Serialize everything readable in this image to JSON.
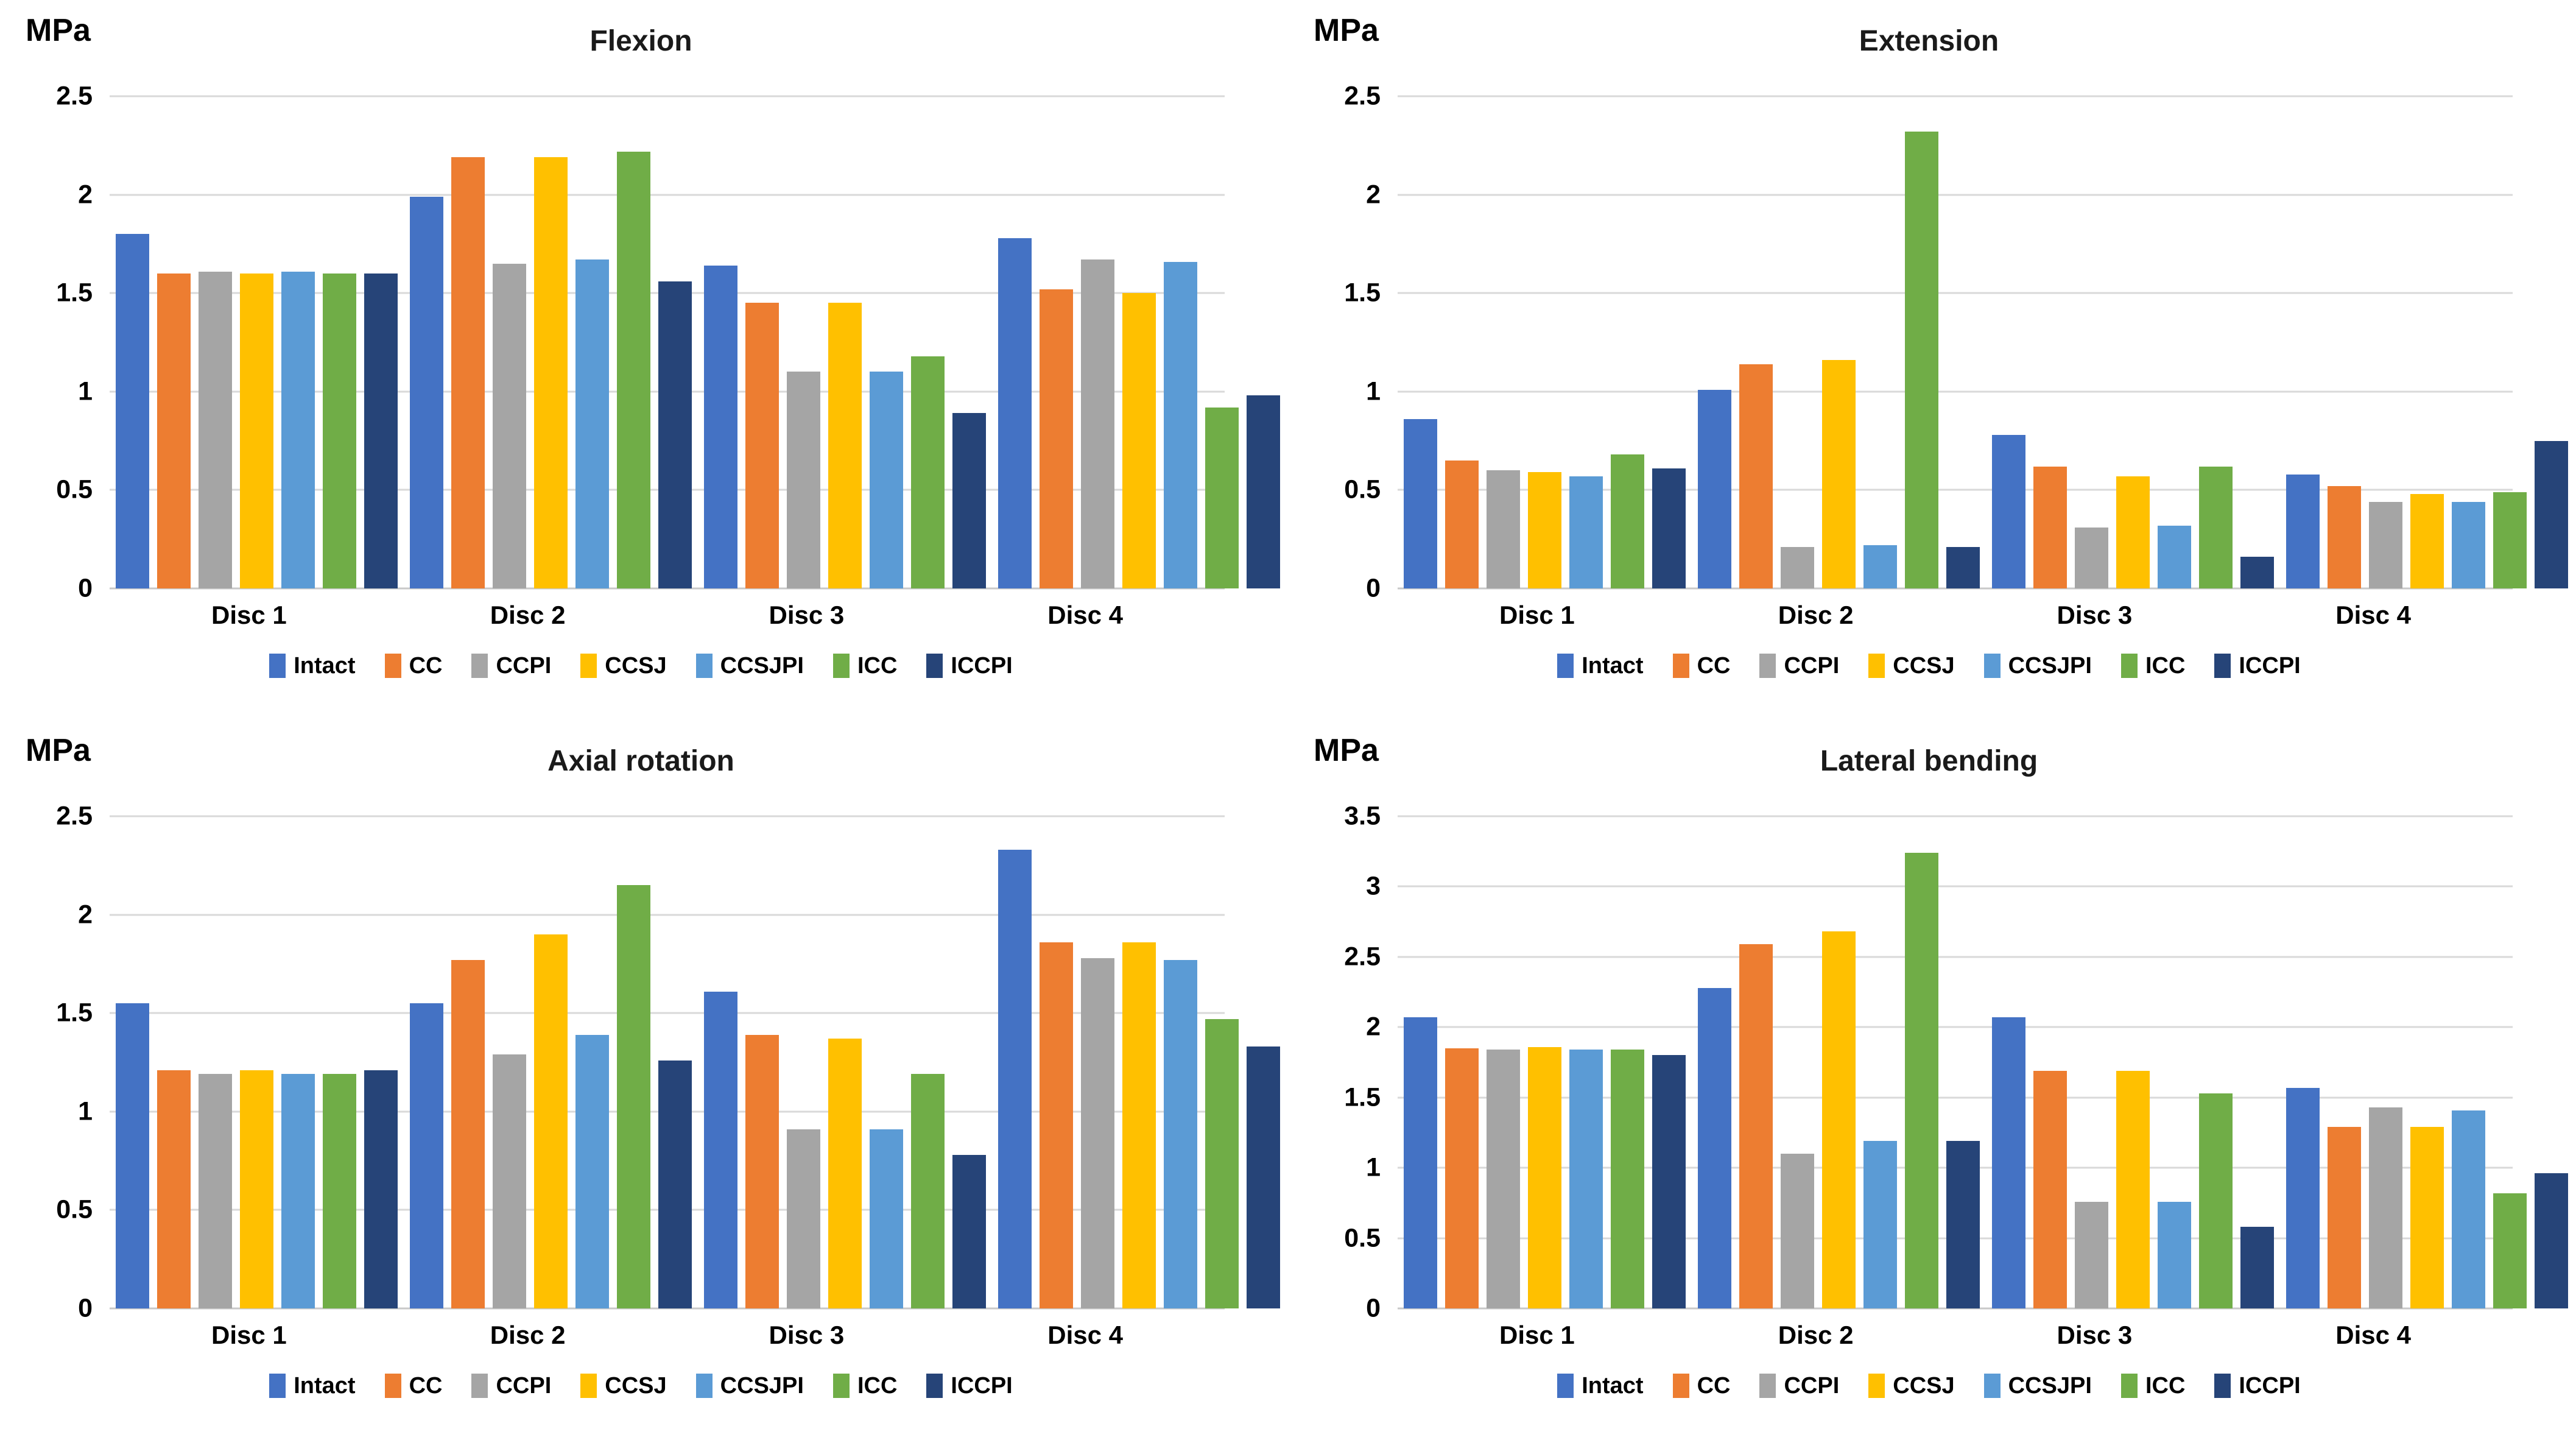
{
  "chart_data": [
    {
      "type": "bar",
      "title": "Flexion",
      "unit": "MPa",
      "categories": [
        "Disc 1",
        "Disc 2",
        "Disc 3",
        "Disc 4"
      ],
      "series": [
        {
          "name": "Intact",
          "color": "#4472C4",
          "values": [
            1.8,
            1.99,
            1.64,
            1.78
          ]
        },
        {
          "name": "CC",
          "color": "#ED7D31",
          "values": [
            1.6,
            2.19,
            1.45,
            1.52
          ]
        },
        {
          "name": "CCPI",
          "color": "#A5A5A5",
          "values": [
            1.61,
            1.65,
            1.1,
            1.67
          ]
        },
        {
          "name": "CCSJ",
          "color": "#FFC000",
          "values": [
            1.6,
            2.19,
            1.45,
            1.5
          ]
        },
        {
          "name": "CCSJPI",
          "color": "#5B9BD5",
          "values": [
            1.61,
            1.67,
            1.1,
            1.66
          ]
        },
        {
          "name": "ICC",
          "color": "#70AD47",
          "values": [
            1.6,
            2.22,
            1.18,
            0.92
          ]
        },
        {
          "name": "ICCPI",
          "color": "#264478",
          "values": [
            1.6,
            1.56,
            0.89,
            0.98
          ]
        }
      ],
      "ylim": [
        0,
        2.5
      ],
      "ytick_step": 0.5,
      "ytick_labels": [
        "0",
        "0.5",
        "1",
        "1.5",
        "2",
        "2.5"
      ],
      "grid": true,
      "legend_position": "bottom"
    },
    {
      "type": "bar",
      "title": "Extension",
      "unit": "MPa",
      "categories": [
        "Disc 1",
        "Disc 2",
        "Disc 3",
        "Disc 4"
      ],
      "series": [
        {
          "name": "Intact",
          "color": "#4472C4",
          "values": [
            0.86,
            1.01,
            0.78,
            0.58
          ]
        },
        {
          "name": "CC",
          "color": "#ED7D31",
          "values": [
            0.65,
            1.14,
            0.62,
            0.52
          ]
        },
        {
          "name": "CCPI",
          "color": "#A5A5A5",
          "values": [
            0.6,
            0.21,
            0.31,
            0.44
          ]
        },
        {
          "name": "CCSJ",
          "color": "#FFC000",
          "values": [
            0.59,
            1.16,
            0.57,
            0.48
          ]
        },
        {
          "name": "CCSJPI",
          "color": "#5B9BD5",
          "values": [
            0.57,
            0.22,
            0.32,
            0.44
          ]
        },
        {
          "name": "ICC",
          "color": "#70AD47",
          "values": [
            0.68,
            2.32,
            0.62,
            0.49
          ]
        },
        {
          "name": "ICCPI",
          "color": "#264478",
          "values": [
            0.61,
            0.21,
            0.16,
            0.75
          ]
        }
      ],
      "ylim": [
        0,
        2.5
      ],
      "ytick_step": 0.5,
      "ytick_labels": [
        "0",
        "0.5",
        "1",
        "1.5",
        "2",
        "2.5"
      ],
      "grid": true,
      "legend_position": "bottom"
    },
    {
      "type": "bar",
      "title": "Axial rotation",
      "unit": "MPa",
      "categories": [
        "Disc 1",
        "Disc 2",
        "Disc 3",
        "Disc 4"
      ],
      "series": [
        {
          "name": "Intact",
          "color": "#4472C4",
          "values": [
            1.55,
            1.55,
            1.61,
            2.33
          ]
        },
        {
          "name": "CC",
          "color": "#ED7D31",
          "values": [
            1.21,
            1.77,
            1.39,
            1.86
          ]
        },
        {
          "name": "CCPI",
          "color": "#A5A5A5",
          "values": [
            1.19,
            1.29,
            0.91,
            1.78
          ]
        },
        {
          "name": "CCSJ",
          "color": "#FFC000",
          "values": [
            1.21,
            1.9,
            1.37,
            1.86
          ]
        },
        {
          "name": "CCSJPI",
          "color": "#5B9BD5",
          "values": [
            1.19,
            1.39,
            0.91,
            1.77
          ]
        },
        {
          "name": "ICC",
          "color": "#70AD47",
          "values": [
            1.19,
            2.15,
            1.19,
            1.47
          ]
        },
        {
          "name": "ICCPI",
          "color": "#264478",
          "values": [
            1.21,
            1.26,
            0.78,
            1.33
          ]
        }
      ],
      "ylim": [
        0,
        2.5
      ],
      "ytick_step": 0.5,
      "ytick_labels": [
        "0",
        "0.5",
        "1",
        "1.5",
        "2",
        "2.5"
      ],
      "grid": true,
      "legend_position": "bottom"
    },
    {
      "type": "bar",
      "title": "Lateral bending",
      "unit": "MPa",
      "categories": [
        "Disc 1",
        "Disc 2",
        "Disc 3",
        "Disc 4"
      ],
      "series": [
        {
          "name": "Intact",
          "color": "#4472C4",
          "values": [
            2.07,
            2.28,
            2.07,
            1.57
          ]
        },
        {
          "name": "CC",
          "color": "#ED7D31",
          "values": [
            1.85,
            2.59,
            1.69,
            1.29
          ]
        },
        {
          "name": "CCPI",
          "color": "#A5A5A5",
          "values": [
            1.84,
            1.1,
            0.76,
            1.43
          ]
        },
        {
          "name": "CCSJ",
          "color": "#FFC000",
          "values": [
            1.86,
            2.68,
            1.69,
            1.29
          ]
        },
        {
          "name": "CCSJPI",
          "color": "#5B9BD5",
          "values": [
            1.84,
            1.19,
            0.76,
            1.41
          ]
        },
        {
          "name": "ICC",
          "color": "#70AD47",
          "values": [
            1.84,
            3.24,
            1.53,
            0.82
          ]
        },
        {
          "name": "ICCPI",
          "color": "#264478",
          "values": [
            1.8,
            1.19,
            0.58,
            0.96
          ]
        }
      ],
      "ylim": [
        0,
        3.5
      ],
      "ytick_step": 0.5,
      "ytick_labels": [
        "0",
        "0.5",
        "1",
        "1.5",
        "2",
        "2.5",
        "3",
        "3.5"
      ],
      "grid": true,
      "legend_position": "bottom"
    }
  ],
  "style_tokens": {
    "gridline_color": "#D9D9D9",
    "text_color": "#000000"
  }
}
